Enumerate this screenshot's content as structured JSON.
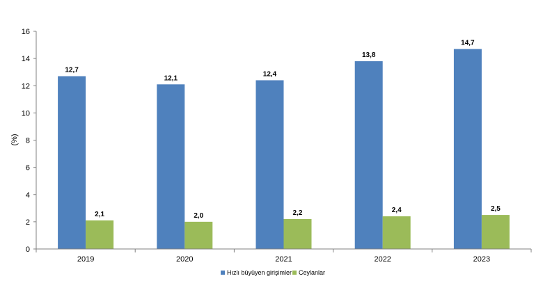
{
  "chart_data": {
    "type": "bar",
    "categories": [
      "2019",
      "2020",
      "2021",
      "2022",
      "2023"
    ],
    "series": [
      {
        "name": "Hızlı büyüyen girişimler",
        "values": [
          12.7,
          12.1,
          12.4,
          13.8,
          14.7
        ],
        "labels": [
          "12,7",
          "12,1",
          "12,4",
          "13,8",
          "14,7"
        ],
        "color": "#4F81BD"
      },
      {
        "name": "Ceylanlar",
        "values": [
          2.1,
          2.0,
          2.2,
          2.4,
          2.5
        ],
        "labels": [
          "2,1",
          "2,0",
          "2,2",
          "2,4",
          "2,5"
        ],
        "color": "#9BBB59"
      }
    ],
    "ylabel": "(%)",
    "ylim": [
      0,
      16
    ],
    "yticks": [
      "0",
      "2",
      "4",
      "6",
      "8",
      "10",
      "12",
      "14",
      "16"
    ],
    "grid": false,
    "legend": "bottom-center"
  }
}
